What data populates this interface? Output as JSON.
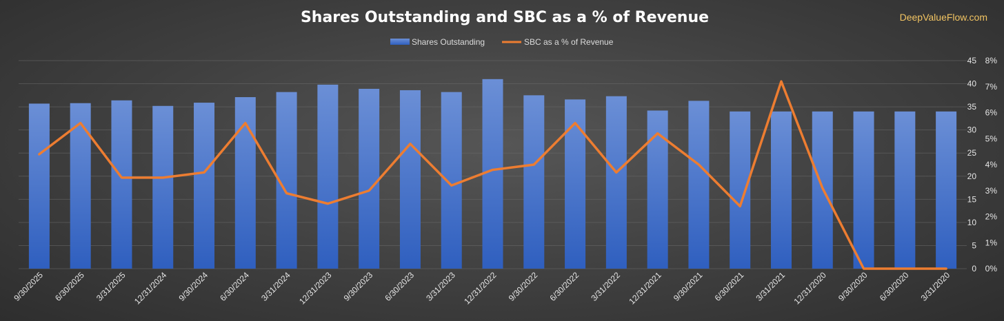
{
  "brand": "DeepValueFlow.com",
  "chart_data": {
    "type": "bar",
    "title": "Shares Outstanding and SBC as a % of Revenue",
    "categories": [
      "9/30/2025",
      "6/30/2025",
      "3/31/2025",
      "12/31/2024",
      "9/30/2024",
      "6/30/2024",
      "3/31/2024",
      "12/31/2023",
      "9/30/2023",
      "6/30/2023",
      "3/31/2023",
      "12/31/2022",
      "9/30/2022",
      "6/30/2022",
      "3/31/2022",
      "12/31/2021",
      "9/30/2021",
      "6/30/2021",
      "3/31/2021",
      "12/31/2020",
      "9/30/2020",
      "6/30/2020",
      "3/31/2020"
    ],
    "series": [
      {
        "name": "Shares Outstanding",
        "type": "bar",
        "axis": "left",
        "color": "#4472c4",
        "values": [
          35.7,
          35.8,
          36.4,
          35.2,
          35.9,
          37.1,
          38.2,
          39.8,
          38.9,
          38.6,
          38.2,
          41.0,
          37.5,
          36.6,
          37.3,
          34.2,
          36.3,
          34.0,
          34.0,
          34.0,
          34.0,
          34.0,
          34.0
        ]
      },
      {
        "name": "SBC as a % of Revenue",
        "type": "line",
        "axis": "right",
        "color": "#ed7d31",
        "values": [
          4.4,
          5.6,
          3.5,
          3.5,
          3.7,
          5.6,
          2.9,
          2.5,
          3.0,
          4.8,
          3.2,
          3.8,
          4.0,
          5.6,
          3.7,
          5.2,
          4.0,
          2.4,
          7.2,
          3.1,
          0.0,
          0.0,
          0.0
        ]
      }
    ],
    "y_left": {
      "min": 0,
      "max": 45,
      "ticks": [
        "0",
        "5",
        "10",
        "15",
        "20",
        "25",
        "30",
        "35",
        "40",
        "45"
      ]
    },
    "y_right": {
      "min": 0,
      "max": 8,
      "ticks": [
        "0%",
        "1%",
        "2%",
        "3%",
        "4%",
        "5%",
        "6%",
        "7%",
        "8%"
      ]
    },
    "grid": true,
    "legend": "top-center"
  }
}
